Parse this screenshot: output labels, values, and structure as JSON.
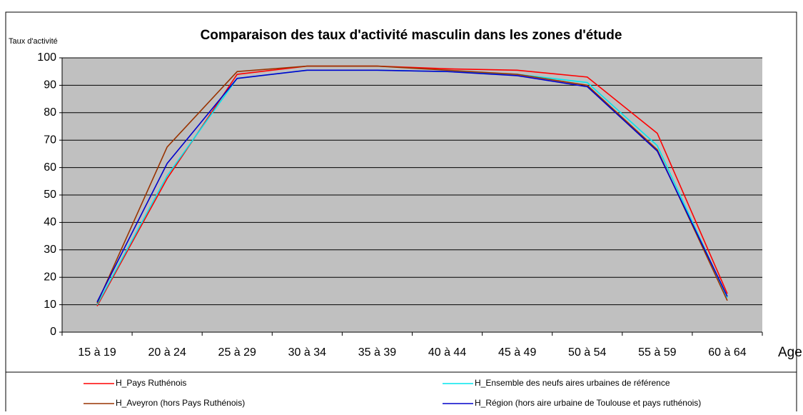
{
  "chart_data": {
    "type": "line",
    "title": "Comparaison des taux d'activité masculin dans les zones d'étude",
    "y_label": "Taux d'activité",
    "x_label": "Age",
    "categories": [
      "15 à 19",
      "20 à 24",
      "25 à 29",
      "30 à 34",
      "35 à 39",
      "40 à 44",
      "45 à 49",
      "50 à 54",
      "55 à 59",
      "60 à 64"
    ],
    "series": [
      {
        "name": "H_Pays Ruthénois",
        "color": "#ff0000",
        "values": [
          9.5,
          56,
          94,
          97,
          97,
          96,
          95.5,
          93,
          72.5,
          14
        ]
      },
      {
        "name": "H_Ensemble des neufs aires urbaines de référence",
        "color": "#00e5ee",
        "values": [
          10,
          57,
          92.5,
          95.5,
          95.5,
          95,
          94,
          91,
          68,
          12.5
        ]
      },
      {
        "name": "H_Aveyron (hors Pays Ruthénois)",
        "color": "#993300",
        "values": [
          10.5,
          67.5,
          95,
          97,
          97,
          95.5,
          94,
          90,
          66.5,
          11.5
        ]
      },
      {
        "name": "H_Région (hors aire urbaine de Toulouse et pays ruthénois)",
        "color": "#0000cc",
        "values": [
          11,
          61.5,
          92.5,
          95.5,
          95.5,
          95,
          93.5,
          89.5,
          66,
          13
        ]
      }
    ],
    "ylim": [
      0,
      100
    ],
    "yticks": [
      0,
      10,
      20,
      30,
      40,
      50,
      60,
      70,
      80,
      90,
      100
    ],
    "grid": true,
    "legend": "bottom"
  }
}
